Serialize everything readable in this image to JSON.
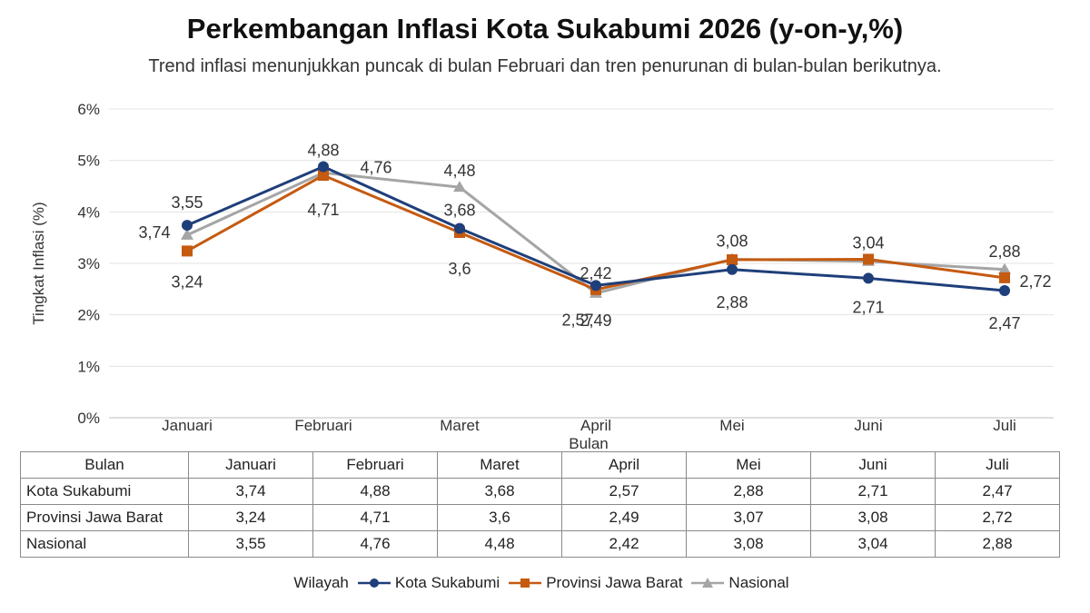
{
  "chart_data": {
    "type": "line",
    "title": "Perkembangan Inflasi Kota Sukabumi 2026 (y-on-y,%)",
    "subtitle": "Trend inflasi menunjukkan puncak di bulan Februari dan tren penurunan di bulan-bulan berikutnya.",
    "xlabel": "Bulan",
    "ylabel": "Tingkat Inflasi (%)",
    "ylim": [
      0,
      6
    ],
    "yticks": [
      "0%",
      "1%",
      "2%",
      "3%",
      "4%",
      "5%",
      "6%"
    ],
    "grid": true,
    "legend_position": "bottom",
    "legend_title": "Wilayah",
    "categories": [
      "Januari",
      "Februari",
      "Maret",
      "April",
      "Mei",
      "Juni",
      "Juli"
    ],
    "series": [
      {
        "name": "Kota Sukabumi",
        "color": "#1f3f7a",
        "marker": "circle",
        "values": [
          3.74,
          4.88,
          3.68,
          2.57,
          2.88,
          2.71,
          2.47
        ],
        "labels": [
          "3,74",
          "4,88",
          "3,68",
          "2,57",
          "2,88",
          "2,71",
          "2,47"
        ]
      },
      {
        "name": "Provinsi Jawa Barat",
        "color": "#c55a11",
        "marker": "square",
        "values": [
          3.24,
          4.71,
          3.6,
          2.49,
          3.07,
          3.08,
          2.72
        ],
        "labels": [
          "3,24",
          "4,71",
          "3,6",
          "2,49",
          "",
          "",
          "2,72"
        ]
      },
      {
        "name": "Nasional",
        "color": "#a5a5a5",
        "marker": "triangle",
        "values": [
          3.55,
          4.76,
          4.48,
          2.42,
          3.08,
          3.04,
          2.88
        ],
        "labels": [
          "3,55",
          "4,76",
          "4,48",
          "2,42",
          "3,08",
          "3,04",
          "2,88"
        ]
      }
    ]
  },
  "table": {
    "header_label": "Bulan",
    "columns": [
      "Januari",
      "Februari",
      "Maret",
      "April",
      "Mei",
      "Juni",
      "Juli"
    ],
    "rows": [
      {
        "label": "Kota Sukabumi",
        "values": [
          "3,74",
          "4,88",
          "3,68",
          "2,57",
          "2,88",
          "2,71",
          "2,47"
        ]
      },
      {
        "label": "Provinsi Jawa Barat",
        "values": [
          "3,24",
          "4,71",
          "3,6",
          "2,49",
          "3,07",
          "3,08",
          "2,72"
        ]
      },
      {
        "label": "Nasional",
        "values": [
          "3,55",
          "4,76",
          "4,48",
          "2,42",
          "3,08",
          "3,04",
          "2,88"
        ]
      }
    ]
  }
}
